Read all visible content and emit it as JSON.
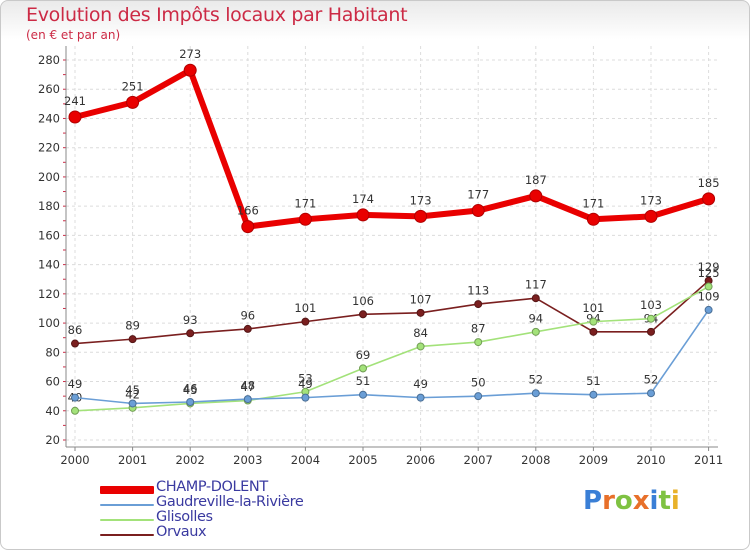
{
  "header": {
    "title": "Evolution des Impôts locaux par Habitant",
    "subtitle": "(en € et par an)"
  },
  "chart_data": {
    "type": "line",
    "title": "Evolution des Impôts locaux par Habitant",
    "subtitle": "(en € et par an)",
    "xlabel": "",
    "ylabel": "",
    "x": [
      "2000",
      "2001",
      "2002",
      "2003",
      "2004",
      "2005",
      "2006",
      "2007",
      "2008",
      "2009",
      "2010",
      "2011"
    ],
    "ylim": [
      20,
      280
    ],
    "yticks": [
      20,
      40,
      60,
      80,
      100,
      120,
      140,
      160,
      180,
      200,
      220,
      240,
      260,
      280
    ],
    "grid": true,
    "legend": "bottom-left",
    "series": [
      {
        "name": "Orvaux",
        "color": "#7a1f1f",
        "values": [
          86,
          89,
          93,
          96,
          101,
          106,
          107,
          113,
          117,
          94,
          94,
          129
        ]
      },
      {
        "name": "Glisolles",
        "color": "#a3e27a",
        "values": [
          40,
          42,
          45,
          47,
          53,
          69,
          84,
          87,
          94,
          101,
          103,
          125
        ]
      },
      {
        "name": "Gaudreville-la-Rivière",
        "color": "#6a9ed6",
        "values": [
          49,
          45,
          46,
          48,
          49,
          51,
          49,
          50,
          52,
          51,
          52,
          109
        ]
      },
      {
        "name": "CHAMP-DOLENT",
        "color": "#e90000",
        "values": [
          241,
          251,
          273,
          166,
          171,
          174,
          173,
          177,
          187,
          171,
          173,
          185
        ]
      }
    ]
  },
  "legend": {
    "items": [
      {
        "label": "CHAMP-DOLENT",
        "color": "#e90000"
      },
      {
        "label": "Gaudreville-la-Rivière",
        "color": "#6a9ed6"
      },
      {
        "label": "Glisolles",
        "color": "#a3e27a"
      },
      {
        "label": "Orvaux",
        "color": "#7a1f1f"
      }
    ]
  },
  "logo": {
    "letters": [
      "P",
      "r",
      "o",
      "x",
      "i",
      "t",
      "i"
    ],
    "colors": [
      "#3a7fd6",
      "#e8702a",
      "#7fc242",
      "#e8702a",
      "#3a7fd6",
      "#7fc242",
      "#e8b22a"
    ]
  }
}
